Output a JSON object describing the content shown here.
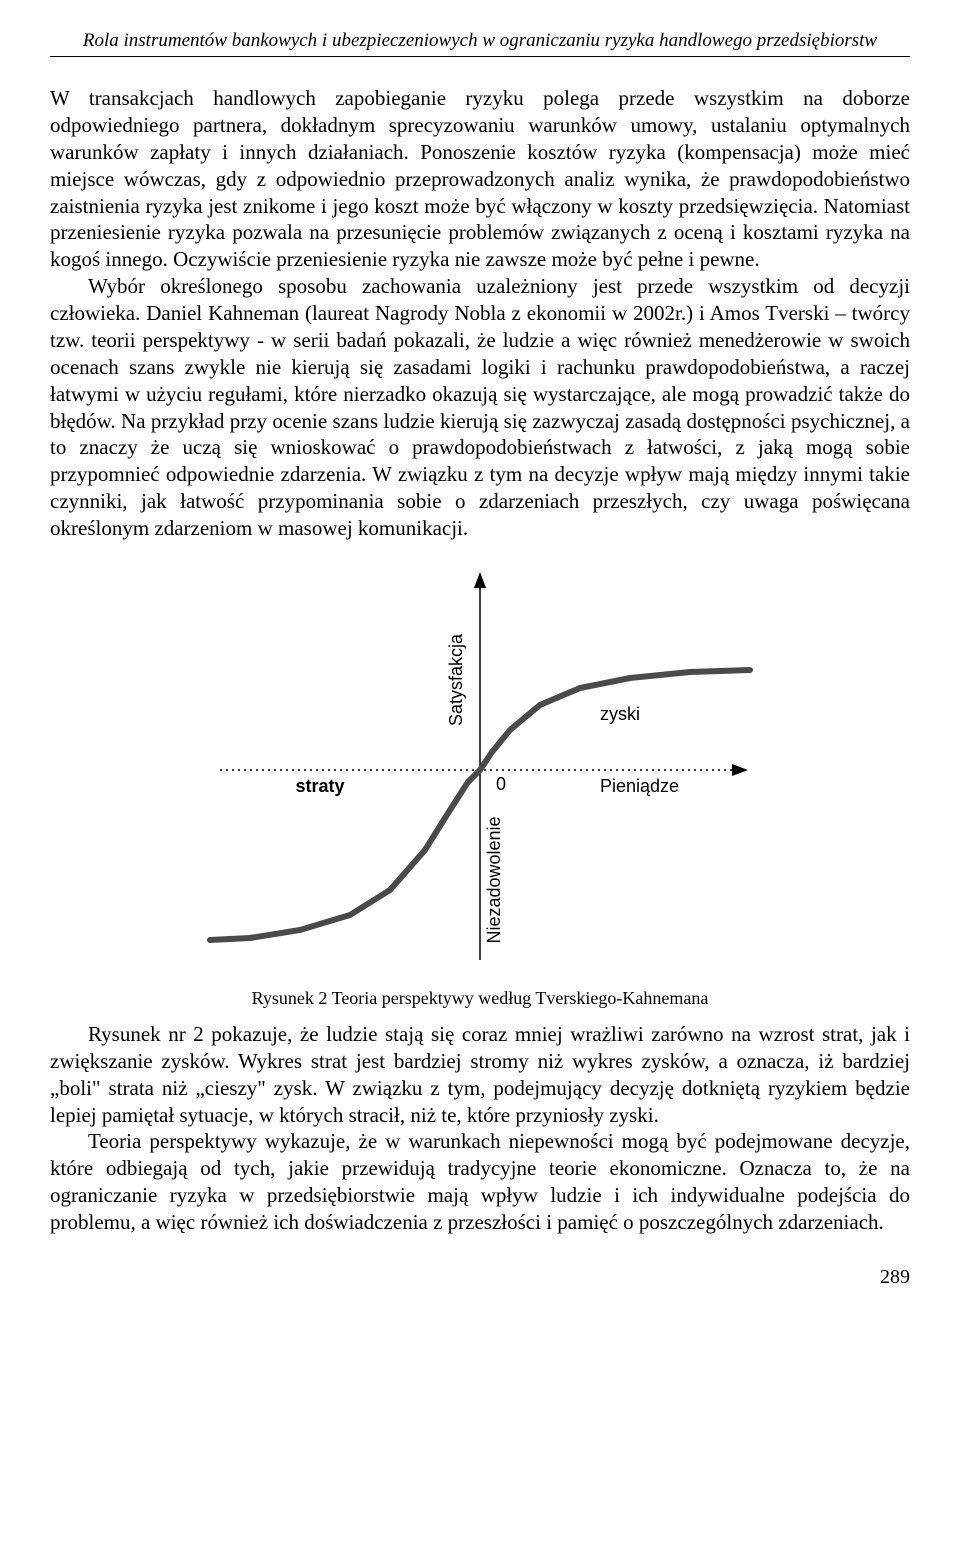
{
  "header": {
    "running_title": "Rola instrumentów bankowych i ubezpieczeniowych w ograniczaniu ryzyka handlowego przedsiębiorstw"
  },
  "paragraphs": {
    "p1": "W transakcjach handlowych zapobieganie ryzyku polega przede wszystkim na doborze odpowiedniego partnera, dokładnym sprecyzowaniu warunków umowy, ustalaniu optymalnych warunków zapłaty i innych działaniach. Ponoszenie kosztów ryzyka (kompensacja) może mieć miejsce wówczas, gdy z odpowiednio przeprowadzonych analiz wynika, że prawdopodobieństwo zaistnienia ryzyka jest znikome i jego koszt może być włączony w koszty przedsięwzięcia. Natomiast przeniesienie ryzyka pozwala na przesunięcie problemów związanych z oceną i kosztami ryzyka na kogoś innego. Oczywiście przeniesienie ryzyka nie zawsze może być pełne i pewne.",
    "p2": "Wybór określonego sposobu zachowania uzależniony jest przede wszystkim od decyzji człowieka. Daniel Kahneman (laureat Nagrody Nobla z ekonomii w 2002r.) i Amos Tverski – twórcy tzw. teorii perspektywy - w serii badań pokazali, że ludzie a więc również menedżerowie w swoich ocenach szans zwykle nie kierują się zasadami logiki i rachunku prawdopodobieństwa, a raczej łatwymi w użyciu regułami, które nierzadko okazują się wystarczające, ale mogą prowadzić także do błędów. Na przykład przy ocenie szans ludzie kierują się zazwyczaj zasadą dostępności psychicznej, a to znaczy że uczą się wnioskować o prawdopodobieństwach z łatwości, z jaką mogą sobie przypomnieć odpowiednie zdarzenia. W związku z tym na decyzje wpływ mają między innymi takie czynniki, jak łatwość przypominania sobie o zdarzeniach przeszłych, czy uwaga poświęcana określonym zdarzeniom w masowej komunikacji.",
    "p3": "Rysunek nr 2 pokazuje, że ludzie stają się coraz mniej wrażliwi zarówno na wzrost strat, jak i zwiększanie zysków. Wykres strat jest bardziej stromy niż wykres zysków, a oznacza, iż bardziej „boli\" strata niż „cieszy\" zysk. W związku z tym, podejmujący decyzję dotkniętą ryzykiem będzie lepiej pamiętał sytuacje, w których stracił, niż te, które przyniosły zyski.",
    "p4": "Teoria perspektywy wykazuje, że w warunkach niepewności mogą być podejmowane decyzje, które odbiegają od tych, jakie przewidują tradycyjne teorie ekonomiczne. Oznacza to, że na ograniczanie ryzyka w przedsiębiorstwie mają wpływ ludzie i ich indywidualne podejścia do problemu, a więc również ich doświadczenia z przeszłości i pamięć o poszczególnych zdarzeniach."
  },
  "figure": {
    "type": "line",
    "caption": "Rysunek 2  Teoria perspektywy według Tverskiego-Kahnemana",
    "y_axis_top_label": "Satysfakcja",
    "y_axis_bottom_label": "Niezadowolenie",
    "x_axis_right_label": "Pieniądze",
    "x_left_label": "straty",
    "x_right_label_above": "zyski",
    "origin_label": "0",
    "background_color": "#ffffff",
    "axis_color": "#000000",
    "curve_color": "#4a4a4a",
    "curve_stroke_width": 6,
    "axis_stroke_width": 1.5,
    "dotted_axis_dash": "2,4",
    "xlim": [
      -280,
      280
    ],
    "ylim": [
      -200,
      200
    ],
    "curve_points": [
      [
        -270,
        -170
      ],
      [
        -230,
        -168
      ],
      [
        -180,
        -160
      ],
      [
        -130,
        -145
      ],
      [
        -90,
        -120
      ],
      [
        -55,
        -80
      ],
      [
        -30,
        -40
      ],
      [
        -12,
        -12
      ],
      [
        0,
        0
      ],
      [
        12,
        18
      ],
      [
        30,
        40
      ],
      [
        60,
        65
      ],
      [
        100,
        82
      ],
      [
        150,
        92
      ],
      [
        210,
        98
      ],
      [
        270,
        100
      ]
    ]
  },
  "page_number": "289"
}
